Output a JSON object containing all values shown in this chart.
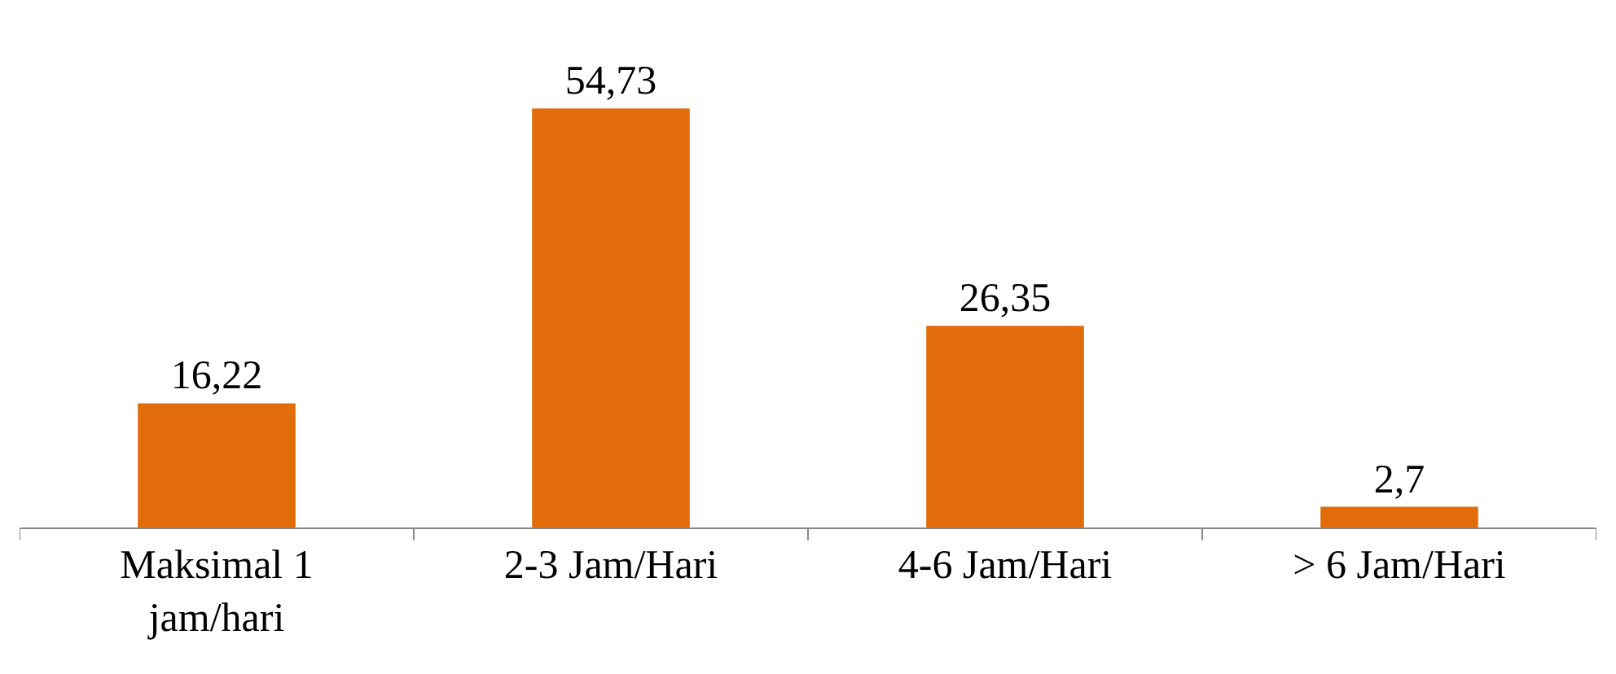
{
  "chart_data": {
    "type": "bar",
    "categories": [
      "Maksimal 1 jam/hari",
      "2-3 Jam/Hari",
      "4-6 Jam/Hari",
      "> 6 Jam/Hari"
    ],
    "values": [
      16.22,
      54.73,
      26.35,
      2.7
    ],
    "value_labels": [
      "16,22",
      "54,73",
      "26,35",
      "2,7"
    ],
    "color": "#e36c0a"
  }
}
